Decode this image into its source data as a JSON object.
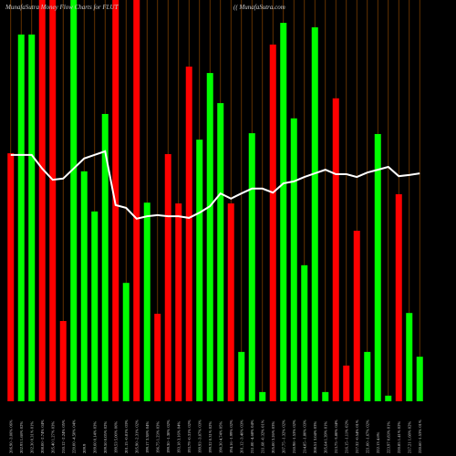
{
  "chart_data": {
    "type": "bar",
    "title": "MunafaSutra  Money Flow  Charts for FLUT",
    "subtitle": "(( MunafaSutra.com",
    "categories": [
      "206.90 -3.06% 06%",
      "202.93 1.68% 02%",
      "202.30 0.31% 01%",
      "208.00 -2.74% 04%",
      "205.40 1.27% 03%",
      "210.12 -2.24% 05%",
      "220.00 -4.50% 04%",
      "209.9",
      "209.60 0.14% 03%",
      "209.50 0.05% 02%",
      "199.53 5.00% 06%",
      "201.15 -0.81% 03%",
      "205.90 -2.31% 02%",
      "199.17 3.38% 04%",
      "196.75 1.23% 03%",
      "199.30 -1.30% 02%",
      "193.18 3.16% 04%",
      "193.79 -0.31% 02%",
      "199.93 -3.07% 03%",
      "199.32 0.31% 02%",
      "190.30 4.74% 05%",
      "194.16 -1.99% 02%",
      "201.12 -3.46% 03%",
      "211.00 -4.68% 04%",
      "211.68 -0.32% 01%",
      "205.00 3.26% 03%",
      "207.75 -1.32% 02%",
      "210.98 -1.53% 02%",
      "214.85 -1.80% 03%",
      "208.51 3.04% 03%",
      "205.64 1.39% 01%",
      "213.75 -3.80% 04%",
      "216.15 -1.11% 02%",
      "217.32 -0.54% 01%",
      "221.00 -1.67% 02%",
      "222.13 4.6%",
      "223.97 0.83% 01%",
      "220.85 1.41% 02%",
      "217.21 1.68% 02%",
      "220.60 -1.53% 01%"
    ],
    "series": [
      {
        "type": "bar",
        "values": [
          61.8,
          91.4,
          91.4,
          100,
          100,
          20,
          100,
          57.3,
          47.3,
          71.6,
          100,
          29.5,
          100,
          49.5,
          21.8,
          61.6,
          49.3,
          83.4,
          65.2,
          81.8,
          74.3,
          49.3,
          12.3,
          66.8,
          2.3,
          88.9,
          94.3,
          70.5,
          33.9,
          93.2,
          2.3,
          75.5,
          8.9,
          42.5,
          12.3,
          66.6,
          1.4,
          51.6,
          22,
          11.1
        ],
        "colors": [
          "#ff0000",
          "#00ff00",
          "#00ff00",
          "#ff0000",
          "#ff0000",
          "#ff0000",
          "#00ff00",
          "#00ff00",
          "#00ff00",
          "#00ff00",
          "#ff0000",
          "#00ff00",
          "#ff0000",
          "#00ff00",
          "#ff0000",
          "#ff0000",
          "#ff0000",
          "#ff0000",
          "#00ff00",
          "#00ff00",
          "#00ff00",
          "#ff0000",
          "#00ff00",
          "#00ff00",
          "#00ff00",
          "#ff0000",
          "#00ff00",
          "#00ff00",
          "#00ff00",
          "#00ff00",
          "#00ff00",
          "#ff0000",
          "#ff0000",
          "#ff0000",
          "#00ff00",
          "#00ff00",
          "#00ff00",
          "#ff0000",
          "#00ff00",
          "#00ff00"
        ]
      },
      {
        "type": "line",
        "color": "#ffffff",
        "values": [
          61.4,
          61.4,
          61.4,
          58,
          55.2,
          55.5,
          58,
          60.5,
          61.4,
          62.3,
          48.9,
          48.2,
          45.5,
          46.1,
          46.4,
          46.1,
          46.1,
          45.7,
          47,
          48.6,
          51.8,
          50.5,
          51.8,
          53,
          53,
          52,
          54.3,
          54.8,
          55.9,
          56.8,
          57.7,
          56.6,
          56.6,
          55.9,
          57,
          57.7,
          58.4,
          56.1,
          56.4,
          56.8
        ]
      }
    ],
    "ylim": [
      0,
      100
    ]
  }
}
